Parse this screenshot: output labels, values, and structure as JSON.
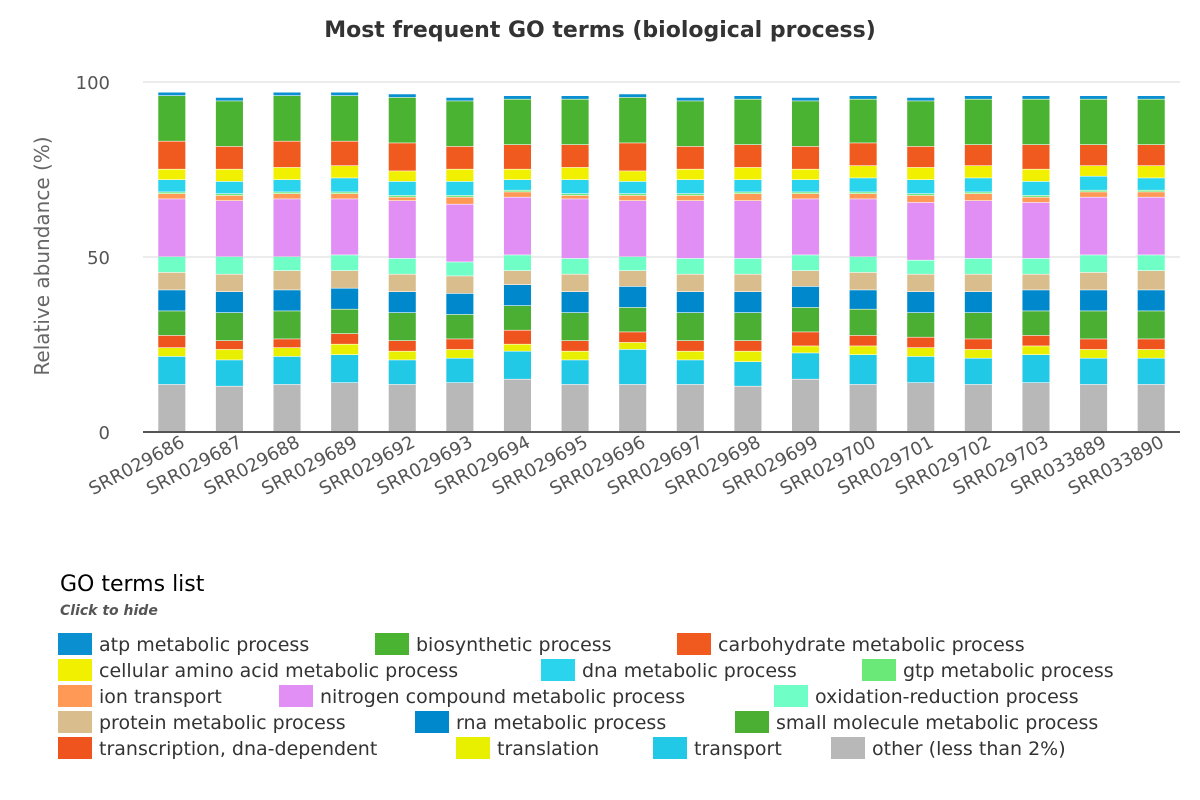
{
  "chart_data": {
    "type": "bar",
    "stacked": true,
    "title": "Most frequent GO terms (biological process)",
    "xlabel": "",
    "ylabel": "Relative abundance (%)",
    "ylim": [
      0,
      100
    ],
    "yticks": [
      0,
      50,
      100
    ],
    "grid": true,
    "legend": {
      "title": "GO terms list",
      "subtitle": "Click to hide",
      "placement": "bottom-left"
    },
    "categories": [
      "SRR029686",
      "SRR029687",
      "SRR029688",
      "SRR029689",
      "SRR029692",
      "SRR029693",
      "SRR029694",
      "SRR029695",
      "SRR029696",
      "SRR029697",
      "SRR029698",
      "SRR029699",
      "SRR029700",
      "SRR029701",
      "SRR029702",
      "SRR029703",
      "SRR033889",
      "SRR033890"
    ],
    "series": [
      {
        "name": "other (less than 2%)",
        "color": "#b8b8b8",
        "values": [
          13.5,
          13,
          13.5,
          14,
          13.5,
          14,
          15,
          13.5,
          13.5,
          13.5,
          13,
          15,
          13.5,
          14,
          13.5,
          14,
          13.5,
          13.5
        ]
      },
      {
        "name": "transport",
        "color": "#22c9e6",
        "values": [
          8,
          7.5,
          8,
          8,
          7,
          7,
          8,
          7,
          10,
          7,
          7,
          7.5,
          8.5,
          7.5,
          7.5,
          8,
          7.5,
          7.5
        ]
      },
      {
        "name": "translation",
        "color": "#e8f000",
        "values": [
          2.5,
          3,
          2.5,
          3,
          2.5,
          2.5,
          2,
          2.5,
          2,
          2.5,
          3,
          2,
          2.5,
          2.5,
          2.5,
          2.5,
          2.5,
          2.5
        ]
      },
      {
        "name": "transcription, dna-dependent",
        "color": "#f0541e",
        "values": [
          3.5,
          2.5,
          2.5,
          3,
          3,
          3,
          4,
          3,
          3,
          3,
          3,
          4,
          3,
          3,
          3,
          3,
          3,
          3
        ]
      },
      {
        "name": "small molecule metabolic process",
        "color": "#4aaf32",
        "values": [
          7,
          8,
          8,
          7,
          8,
          7,
          7,
          8,
          7,
          8,
          8,
          7,
          7.5,
          7,
          7.5,
          7,
          8,
          8
        ]
      },
      {
        "name": "rna metabolic process",
        "color": "#0088cc",
        "values": [
          6,
          6,
          6,
          6,
          6,
          6,
          6,
          6,
          6,
          6,
          6,
          6,
          5.5,
          6,
          6,
          6,
          6,
          6
        ]
      },
      {
        "name": "protein metabolic process",
        "color": "#d9bd8c",
        "values": [
          5,
          5,
          5.5,
          5,
          5,
          5,
          4,
          5,
          4.5,
          5,
          5,
          4.5,
          5,
          5,
          5,
          4.5,
          5,
          5.5
        ]
      },
      {
        "name": "oxidation-reduction process",
        "color": "#6fffc6",
        "values": [
          4.5,
          5,
          4,
          4.5,
          4.5,
          4,
          4.5,
          4.5,
          4,
          4.5,
          4.5,
          4.5,
          4.5,
          4,
          4.5,
          4.5,
          5,
          4.5
        ]
      },
      {
        "name": "nitrogen compound metabolic process",
        "color": "#e28ff5",
        "values": [
          16.5,
          16,
          16.5,
          16,
          16.5,
          16.5,
          16.5,
          17,
          16,
          16.5,
          16.5,
          16,
          16.5,
          16.5,
          16.5,
          16,
          16.5,
          16.5
        ]
      },
      {
        "name": "ion transport",
        "color": "#ff9955",
        "values": [
          1.5,
          1.5,
          1.5,
          1.5,
          1,
          2,
          1.5,
          1,
          1.5,
          1.5,
          2,
          1.5,
          1.5,
          2,
          2,
          1.5,
          1.5,
          1.5
        ]
      },
      {
        "name": "gtp metabolic process",
        "color": "#6ae878",
        "values": [
          0.5,
          0.5,
          0.5,
          0.5,
          0.5,
          0.5,
          0.5,
          0.5,
          0.5,
          0.5,
          0.5,
          0.5,
          0.5,
          0.5,
          0.5,
          0.5,
          0.5,
          0.5
        ]
      },
      {
        "name": "dna metabolic process",
        "color": "#2ad4ec",
        "values": [
          3.5,
          3.5,
          3.5,
          4,
          4,
          4,
          3,
          4,
          3.5,
          4,
          3.5,
          3.5,
          4,
          4,
          4,
          4,
          4,
          3.5
        ]
      },
      {
        "name": "cellular amino acid metabolic process",
        "color": "#f0f000",
        "values": [
          3,
          3.5,
          3.5,
          3.5,
          3,
          3.5,
          3,
          3.5,
          3,
          3,
          3.5,
          3,
          3.5,
          3.5,
          3.5,
          3.5,
          3,
          3.5
        ]
      },
      {
        "name": "carbohydrate metabolic process",
        "color": "#f05a1e",
        "values": [
          8,
          6.5,
          7.5,
          7,
          8,
          6.5,
          7,
          6.5,
          8,
          6.5,
          6.5,
          6.5,
          6.5,
          6,
          6,
          7,
          6,
          6
        ]
      },
      {
        "name": "biosynthetic process",
        "color": "#4ab332",
        "values": [
          13,
          13,
          13,
          13,
          13,
          13,
          13,
          13,
          13,
          13,
          13,
          13,
          12.5,
          13,
          13,
          13,
          13,
          13
        ]
      },
      {
        "name": "atp metabolic process",
        "color": "#0a90d0",
        "values": [
          1,
          1,
          1,
          1,
          1,
          1,
          1,
          1,
          1,
          1,
          1,
          1,
          1,
          1,
          1,
          1,
          1,
          1
        ]
      }
    ],
    "legend_entries": [
      {
        "name": "atp metabolic process",
        "color": "#0a90d0"
      },
      {
        "name": "biosynthetic process",
        "color": "#4ab332"
      },
      {
        "name": "carbohydrate metabolic process",
        "color": "#f05a1e"
      },
      {
        "name": "cellular amino acid metabolic process",
        "color": "#f0f000"
      },
      {
        "name": "dna metabolic process",
        "color": "#2ad4ec"
      },
      {
        "name": "gtp metabolic process",
        "color": "#6ae878"
      },
      {
        "name": "ion transport",
        "color": "#ff9955"
      },
      {
        "name": "nitrogen compound metabolic process",
        "color": "#e28ff5"
      },
      {
        "name": "oxidation-reduction process",
        "color": "#6fffc6"
      },
      {
        "name": "protein metabolic process",
        "color": "#d9bd8c"
      },
      {
        "name": "rna metabolic process",
        "color": "#0088cc"
      },
      {
        "name": "small molecule metabolic process",
        "color": "#4aaf32"
      },
      {
        "name": "transcription, dna-dependent",
        "color": "#f0541e"
      },
      {
        "name": "translation",
        "color": "#e8f000"
      },
      {
        "name": "transport",
        "color": "#22c9e6"
      },
      {
        "name": "other (less than 2%)",
        "color": "#b8b8b8"
      }
    ]
  }
}
